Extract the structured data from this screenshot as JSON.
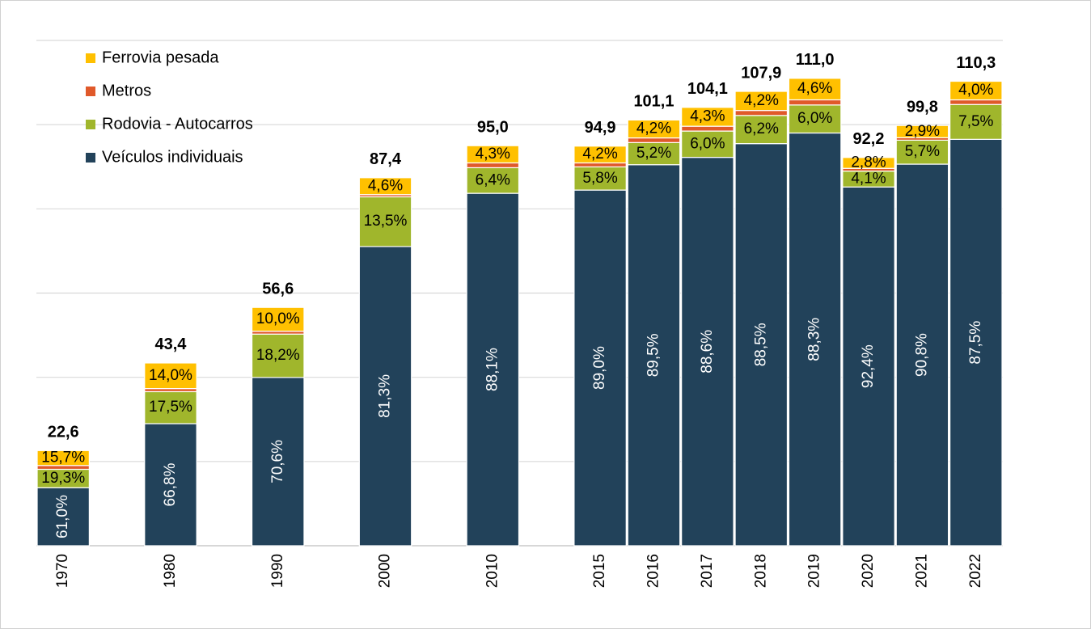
{
  "chart_data": {
    "type": "stacked-bar",
    "categories": [
      "1970",
      null,
      "1980",
      null,
      "1990",
      null,
      "2000",
      null,
      "2010",
      null,
      "2015",
      "2016",
      "2017",
      "2018",
      "2019",
      "2020",
      "2021",
      "2022"
    ],
    "totals": {
      "values": [
        22.6,
        null,
        43.4,
        null,
        56.6,
        null,
        87.4,
        null,
        95.0,
        null,
        94.9,
        101.1,
        104.1,
        107.9,
        111.0,
        92.2,
        99.8,
        110.3
      ],
      "value_labels": [
        "22,6",
        null,
        "43,4",
        null,
        "56,6",
        null,
        "87,4",
        null,
        "95,0",
        null,
        "94,9",
        "101,1",
        "104,1",
        "107,9",
        "111,0",
        "92,2",
        "99,8",
        "110,3"
      ]
    },
    "series": [
      {
        "name": "Veículos individuais",
        "color": "#22425a",
        "values": [
          61.0,
          null,
          66.8,
          null,
          70.6,
          null,
          81.3,
          null,
          88.1,
          null,
          89.0,
          89.5,
          88.6,
          88.5,
          88.3,
          92.4,
          90.8,
          87.5
        ],
        "value_labels": [
          "61,0%",
          null,
          "66,8%",
          null,
          "70,6%",
          null,
          "81,3%",
          null,
          "88,1%",
          null,
          "89,0%",
          "89,5%",
          "88,6%",
          "88,5%",
          "88,3%",
          "92,4%",
          "90,8%",
          "87,5%"
        ]
      },
      {
        "name": "Rodovia - Autocarros",
        "color": "#a0b62c",
        "values": [
          19.3,
          null,
          17.5,
          null,
          18.2,
          null,
          13.5,
          null,
          6.4,
          null,
          5.8,
          5.2,
          6.0,
          6.2,
          6.0,
          4.1,
          5.7,
          7.5
        ],
        "value_labels": [
          "19,3%",
          null,
          "17,5%",
          null,
          "18,2%",
          null,
          "13,5%",
          null,
          "6,4%",
          null,
          "5,8%",
          "5,2%",
          "6,0%",
          "6,2%",
          "6,0%",
          "4,1%",
          "5,7%",
          "7,5%"
        ]
      },
      {
        "name": "Metros",
        "color": "#e0592a",
        "values": [
          4.0,
          null,
          1.7,
          null,
          1.2,
          null,
          0.6,
          null,
          1.2,
          null,
          1.0,
          1.1,
          1.1,
          1.1,
          1.1,
          0.7,
          0.6,
          1.0
        ]
      },
      {
        "name": "Ferrovia pesada",
        "color": "#ffc000",
        "values": [
          15.7,
          null,
          14.0,
          null,
          10.0,
          null,
          4.6,
          null,
          4.3,
          null,
          4.2,
          4.2,
          4.3,
          4.2,
          4.6,
          2.8,
          2.9,
          4.0
        ],
        "value_labels": [
          "15,7%",
          null,
          "14,0%",
          null,
          "10,0%",
          null,
          "4,6%",
          null,
          "4,3%",
          null,
          "4,2%",
          "4,2%",
          "4,3%",
          "4,2%",
          "4,6%",
          "2,8%",
          "2,9%",
          "4,0%"
        ]
      }
    ],
    "ylim": [
      0,
      120
    ],
    "yticks": [
      0,
      20,
      40,
      60,
      80,
      100,
      120
    ],
    "grid": true,
    "legend": "top-left"
  }
}
